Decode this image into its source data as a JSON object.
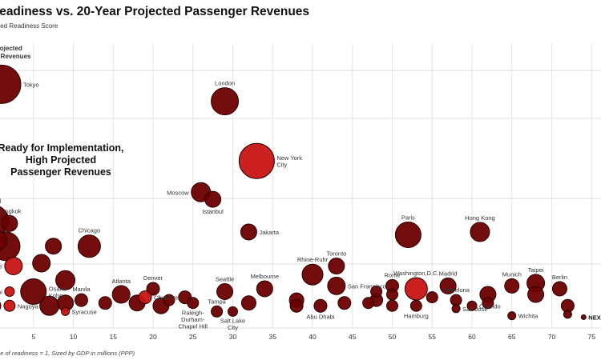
{
  "chart_data": {
    "type": "scatter",
    "title": "Readiness vs. 20-Year Projected Passenger Revenues",
    "subtitle": "Adjusted Readiness Score",
    "ylabel": [
      "r Projected",
      "ger Revenues"
    ],
    "xlabel": "",
    "footnote": "me of readiness = 1, Sized by GDP in millions (PPP)",
    "callout": [
      "Ready for Implementation,",
      "High Projected",
      "Passenger Revenues"
    ],
    "xlim": [
      0,
      76
    ],
    "xticks": [
      5,
      10,
      15,
      20,
      25,
      30,
      35,
      40,
      45,
      50,
      55,
      60,
      65,
      70,
      75
    ],
    "grid": true,
    "colors": {
      "dark": "#6b0000",
      "highlight": "#c81414",
      "outline": "#2a0000"
    },
    "points": [
      {
        "label": "Tokyo",
        "x": 1,
        "y": 83,
        "r": 24,
        "c": "dark",
        "la": "r"
      },
      {
        "label": "London",
        "x": 29,
        "y": 77,
        "r": 17,
        "c": "dark",
        "la": "t"
      },
      {
        "label": "New York\nCity",
        "x": 33,
        "y": 56,
        "r": 22,
        "c": "highlight",
        "la": "r"
      },
      {
        "label": "Moscow",
        "x": 26,
        "y": 45,
        "r": 12,
        "c": "dark",
        "la": "l"
      },
      {
        "label": "Istanbul",
        "x": 27.5,
        "y": 42.5,
        "r": 10,
        "c": "dark",
        "la": "b"
      },
      {
        "label": "Seoul",
        "x": 0,
        "y": 35,
        "r": 19,
        "c": "dark",
        "la": "t"
      },
      {
        "label": "Bangkok",
        "x": 2,
        "y": 34,
        "r": 10,
        "c": "dark",
        "la": "t"
      },
      {
        "label": "Osaka",
        "x": 0.5,
        "y": 28,
        "r": 12,
        "c": "dark",
        "la": "l"
      },
      {
        "label": "",
        "x": 1.5,
        "y": 26,
        "r": 18,
        "c": "dark",
        "la": "n"
      },
      {
        "label": "Singapore",
        "x": 2.5,
        "y": 19,
        "r": 11,
        "c": "highlight",
        "la": "l"
      },
      {
        "label": "",
        "x": 6,
        "y": 20,
        "r": 11,
        "c": "dark",
        "la": "n"
      },
      {
        "label": "",
        "x": 7.5,
        "y": 26,
        "r": 10,
        "c": "dark",
        "la": "n"
      },
      {
        "label": "Chicago",
        "x": 12,
        "y": 26,
        "r": 14,
        "c": "dark",
        "la": "t"
      },
      {
        "label": "Jakarta",
        "x": 32,
        "y": 31,
        "r": 10,
        "c": "dark",
        "la": "r"
      },
      {
        "label": "Paris",
        "x": 52,
        "y": 30,
        "r": 16,
        "c": "dark",
        "la": "t"
      },
      {
        "label": "Hong Kong",
        "x": 61,
        "y": 31,
        "r": 12,
        "c": "dark",
        "la": "t"
      },
      {
        "label": "Toronto",
        "x": 43,
        "y": 19,
        "r": 10,
        "c": "dark",
        "la": "t"
      },
      {
        "label": "Rhine-Ruhr",
        "x": 40,
        "y": 16,
        "r": 13,
        "c": "dark",
        "la": "t"
      },
      {
        "label": "San Francisco",
        "x": 43,
        "y": 12,
        "r": 11,
        "c": "dark",
        "la": "r"
      },
      {
        "label": "Rome",
        "x": 50,
        "y": 12,
        "r": 8,
        "c": "dark",
        "la": "t"
      },
      {
        "label": "Washington,D.C.",
        "x": 53,
        "y": 11,
        "r": 14,
        "c": "highlight",
        "la": "t"
      },
      {
        "label": "Madrid",
        "x": 57,
        "y": 12,
        "r": 10,
        "c": "dark",
        "la": "t"
      },
      {
        "label": "Munich",
        "x": 65,
        "y": 12,
        "r": 9,
        "c": "dark",
        "la": "t"
      },
      {
        "label": "Taipei",
        "x": 68,
        "y": 13,
        "r": 11,
        "c": "dark",
        "la": "t"
      },
      {
        "label": "Berlin",
        "x": 71,
        "y": 11,
        "r": 9,
        "c": "dark",
        "la": "t"
      },
      {
        "label": "Seattle",
        "x": 29,
        "y": 10,
        "r": 10,
        "c": "dark",
        "la": "t"
      },
      {
        "label": "Melbourne",
        "x": 34,
        "y": 11,
        "r": 10,
        "c": "dark",
        "la": "t"
      },
      {
        "label": "Denver",
        "x": 20,
        "y": 11,
        "r": 8,
        "c": "dark",
        "la": "t"
      },
      {
        "label": "Atlanta",
        "x": 16,
        "y": 9,
        "r": 11,
        "c": "dark",
        "la": "t"
      },
      {
        "label": "Osaka-\nKobe",
        "x": 5,
        "y": 10,
        "r": 16,
        "c": "dark",
        "la": "r"
      },
      {
        "label": "",
        "x": 9,
        "y": 14,
        "r": 12,
        "c": "dark",
        "la": "n"
      },
      {
        "label": "Dubai",
        "x": 2,
        "y": 10,
        "r": 6,
        "c": "highlight",
        "la": "l"
      },
      {
        "label": "Manila",
        "x": 11,
        "y": 7,
        "r": 8,
        "c": "dark",
        "la": "t"
      },
      {
        "label": "Charlotte",
        "x": 19,
        "y": 8,
        "r": 8,
        "c": "highlight",
        "la": "r"
      },
      {
        "label": "Vancouver",
        "x": 0,
        "y": 5,
        "r": 9,
        "c": "dark",
        "la": "l"
      },
      {
        "label": "Nagoya",
        "x": 2,
        "y": 5,
        "r": 7,
        "c": "highlight",
        "la": "r"
      },
      {
        "label": "",
        "x": 7,
        "y": 5,
        "r": 12,
        "c": "dark",
        "la": "n"
      },
      {
        "label": "Syracuse",
        "x": 9,
        "y": 3,
        "r": 5,
        "c": "highlight",
        "la": "r"
      },
      {
        "label": "",
        "x": 9,
        "y": 6,
        "r": 10,
        "c": "dark",
        "la": "n"
      },
      {
        "label": "",
        "x": 14,
        "y": 6,
        "r": 8,
        "c": "dark",
        "la": "n"
      },
      {
        "label": "",
        "x": 18,
        "y": 6,
        "r": 10,
        "c": "dark",
        "la": "n"
      },
      {
        "label": "",
        "x": 21,
        "y": 5,
        "r": 10,
        "c": "dark",
        "la": "n"
      },
      {
        "label": "",
        "x": 22,
        "y": 7,
        "r": 7,
        "c": "dark",
        "la": "n"
      },
      {
        "label": "",
        "x": 24,
        "y": 8,
        "r": 8,
        "c": "dark",
        "la": "n"
      },
      {
        "label": "Raleigh-\nDurham-\nChapel Hill",
        "x": 25,
        "y": 6,
        "r": 7,
        "c": "dark",
        "la": "b"
      },
      {
        "label": "Tampa",
        "x": 28,
        "y": 3,
        "r": 7,
        "c": "dark",
        "la": "t"
      },
      {
        "label": "Salt Lake\nCity",
        "x": 30,
        "y": 3,
        "r": 6,
        "c": "dark",
        "la": "b"
      },
      {
        "label": "",
        "x": 32,
        "y": 6,
        "r": 9,
        "c": "dark",
        "la": "n"
      },
      {
        "label": "",
        "x": 38,
        "y": 5,
        "r": 8,
        "c": "dark",
        "la": "n"
      },
      {
        "label": "",
        "x": 38,
        "y": 7,
        "r": 9,
        "c": "dark",
        "la": "n"
      },
      {
        "label": "Abu Dhabi",
        "x": 41,
        "y": 5,
        "r": 8,
        "c": "dark",
        "la": "b"
      },
      {
        "label": "",
        "x": 44,
        "y": 6,
        "r": 8,
        "c": "dark",
        "la": "n"
      },
      {
        "label": "",
        "x": 47,
        "y": 6,
        "r": 7,
        "c": "dark",
        "la": "n"
      },
      {
        "label": "",
        "x": 48,
        "y": 10,
        "r": 7,
        "c": "dark",
        "la": "n"
      },
      {
        "label": "",
        "x": 48,
        "y": 7,
        "r": 8,
        "c": "dark",
        "la": "n"
      },
      {
        "label": "",
        "x": 50,
        "y": 9,
        "r": 7,
        "c": "dark",
        "la": "n"
      },
      {
        "label": "",
        "x": 50,
        "y": 5,
        "r": 7,
        "c": "dark",
        "la": "n"
      },
      {
        "label": "Hamburg",
        "x": 53,
        "y": 5,
        "r": 7,
        "c": "dark",
        "la": "b"
      },
      {
        "label": "",
        "x": 55,
        "y": 8,
        "r": 7,
        "c": "dark",
        "la": "n"
      },
      {
        "label": "Barcelona",
        "x": 58,
        "y": 7,
        "r": 7,
        "c": "dark",
        "la": "t"
      },
      {
        "label": "San Jose",
        "x": 58,
        "y": 4,
        "r": 5,
        "c": "dark",
        "la": "r"
      },
      {
        "label": "Orlando",
        "x": 60,
        "y": 5,
        "r": 6,
        "c": "dark",
        "la": "r"
      },
      {
        "label": "",
        "x": 62,
        "y": 9,
        "r": 10,
        "c": "dark",
        "la": "n"
      },
      {
        "label": "",
        "x": 62,
        "y": 6,
        "r": 7,
        "c": "dark",
        "la": "n"
      },
      {
        "label": "Wichita",
        "x": 65,
        "y": 1.5,
        "r": 5,
        "c": "dark",
        "la": "r"
      },
      {
        "label": "",
        "x": 68,
        "y": 9,
        "r": 10,
        "c": "dark",
        "la": "n"
      },
      {
        "label": "",
        "x": 72,
        "y": 5,
        "r": 8,
        "c": "dark",
        "la": "n"
      },
      {
        "label": "",
        "x": 72,
        "y": 2,
        "r": 5,
        "c": "dark",
        "la": "n"
      },
      {
        "label": "NEXA",
        "x": 74,
        "y": 1,
        "r": 3,
        "c": "dark",
        "la": "r"
      }
    ]
  }
}
